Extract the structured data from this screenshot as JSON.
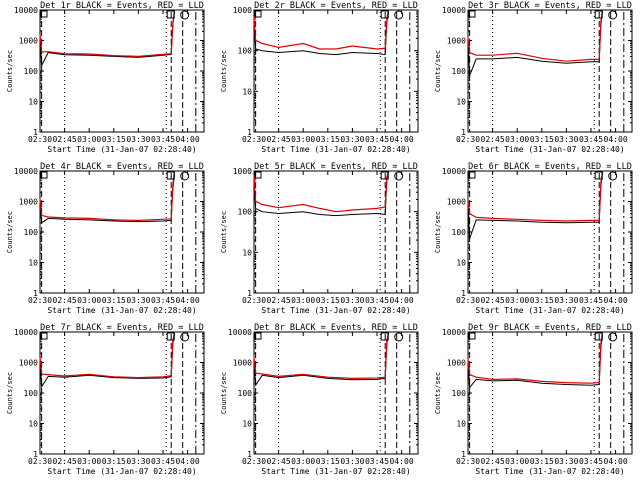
{
  "chart_data": [
    {
      "type": "line",
      "title": "Det 1r BLACK = Events, RED = LLD",
      "xlabel": "Start Time (31-Jan-07 02:28:40)",
      "ylabel": "Counts/sec",
      "yscale": "log",
      "ylim": [
        1,
        10000
      ],
      "xlim": [
        "02:30",
        "04:10"
      ],
      "x_ticks": [
        "02:30",
        "02:45",
        "03:00",
        "03:15",
        "03:30",
        "03:45",
        "04:00"
      ],
      "y_ticks": [
        "1",
        "10",
        "100",
        "1000",
        "10000"
      ],
      "series": [
        {
          "color": "#000000",
          "x": [
            "02:30",
            "02:31",
            "02:35",
            "02:45",
            "03:00",
            "03:15",
            "03:30",
            "03:45",
            "03:50",
            "03:51",
            "03:52"
          ],
          "y": [
            1500,
            150,
            400,
            340,
            330,
            300,
            280,
            330,
            350,
            3000,
            9000
          ]
        },
        {
          "color": "#e00000",
          "x": [
            "02:30",
            "02:31",
            "02:35",
            "02:45",
            "03:00",
            "03:15",
            "03:30",
            "03:45",
            "03:50",
            "03:51",
            "03:52"
          ],
          "y": [
            1600,
            420,
            430,
            370,
            360,
            320,
            300,
            350,
            370,
            3500,
            10000
          ]
        }
      ]
    },
    {
      "type": "line",
      "title": "Det 2r BLACK = Events, RED = LLD",
      "xlabel": "Start Time (31-Jan-07 02:28:40)",
      "ylabel": "Counts/sec",
      "yscale": "log",
      "ylim": [
        1,
        1000
      ],
      "xlim": [
        "02:30",
        "04:10"
      ],
      "x_ticks": [
        "02:30",
        "02:45",
        "03:00",
        "03:15",
        "03:30",
        "03:45",
        "04:00"
      ],
      "y_ticks": [
        "1",
        "10",
        "100",
        "1000"
      ],
      "series": [
        {
          "color": "#000000",
          "x": [
            "02:30",
            "02:31",
            "02:35",
            "02:45",
            "03:00",
            "03:10",
            "03:20",
            "03:30",
            "03:45",
            "03:50",
            "03:51",
            "03:52"
          ],
          "y": [
            600,
            110,
            100,
            90,
            100,
            85,
            80,
            90,
            85,
            80,
            500,
            900
          ]
        },
        {
          "color": "#e00000",
          "x": [
            "02:30",
            "02:31",
            "02:35",
            "02:45",
            "03:00",
            "03:10",
            "03:20",
            "03:30",
            "03:45",
            "03:50",
            "03:51",
            "03:52"
          ],
          "y": [
            700,
            180,
            150,
            120,
            150,
            110,
            110,
            130,
            110,
            115,
            600,
            1000
          ]
        }
      ]
    },
    {
      "type": "line",
      "title": "Det 3r BLACK = Events, RED = LLD",
      "xlabel": "Start Time (31-Jan-07 02:28:40)",
      "ylabel": "Counts/sec",
      "yscale": "log",
      "ylim": [
        1,
        10000
      ],
      "xlim": [
        "02:30",
        "04:10"
      ],
      "x_ticks": [
        "02:30",
        "02:45",
        "03:00",
        "03:15",
        "03:30",
        "03:45",
        "04:00"
      ],
      "y_ticks": [
        "1",
        "10",
        "100",
        "1000",
        "10000"
      ],
      "series": [
        {
          "color": "#000000",
          "x": [
            "02:30",
            "02:31",
            "02:35",
            "02:45",
            "03:00",
            "03:15",
            "03:30",
            "03:45",
            "03:50",
            "03:51",
            "03:52"
          ],
          "y": [
            1200,
            70,
            250,
            250,
            280,
            210,
            180,
            200,
            200,
            3000,
            9000
          ]
        },
        {
          "color": "#e00000",
          "x": [
            "02:30",
            "02:31",
            "02:35",
            "02:45",
            "03:00",
            "03:15",
            "03:30",
            "03:45",
            "03:50",
            "03:51",
            "03:52"
          ],
          "y": [
            1300,
            400,
            330,
            330,
            380,
            260,
            210,
            240,
            240,
            4000,
            10000
          ]
        }
      ]
    },
    {
      "type": "line",
      "title": "Det 4r BLACK = Events, RED = LLD",
      "xlabel": "Start Time (31-Jan-07 02:28:40)",
      "ylabel": "Counts/sec",
      "yscale": "log",
      "ylim": [
        1,
        10000
      ],
      "xlim": [
        "02:30",
        "04:10"
      ],
      "x_ticks": [
        "02:30",
        "02:45",
        "03:00",
        "03:15",
        "03:30",
        "03:45",
        "04:00"
      ],
      "y_ticks": [
        "1",
        "10",
        "100",
        "1000",
        "10000"
      ],
      "series": [
        {
          "color": "#000000",
          "x": [
            "02:30",
            "02:31",
            "02:35",
            "02:45",
            "03:00",
            "03:15",
            "03:30",
            "03:45",
            "03:50",
            "03:51",
            "03:52"
          ],
          "y": [
            1100,
            200,
            280,
            260,
            250,
            230,
            220,
            230,
            240,
            2500,
            8000
          ]
        },
        {
          "color": "#e00000",
          "x": [
            "02:30",
            "02:31",
            "02:35",
            "02:45",
            "03:00",
            "03:15",
            "03:30",
            "03:45",
            "03:50",
            "03:51",
            "03:52"
          ],
          "y": [
            1200,
            350,
            310,
            290,
            280,
            250,
            240,
            260,
            270,
            3500,
            10000
          ]
        }
      ]
    },
    {
      "type": "line",
      "title": "Det 5r BLACK = Events, RED = LLD",
      "xlabel": "Start Time (31-Jan-07 02:28:40)",
      "ylabel": "Counts/sec",
      "yscale": "log",
      "ylim": [
        1,
        1000
      ],
      "xlim": [
        "02:30",
        "04:10"
      ],
      "x_ticks": [
        "02:30",
        "02:45",
        "03:00",
        "03:15",
        "03:30",
        "03:45",
        "04:00"
      ],
      "y_ticks": [
        "1",
        "10",
        "100",
        "1000"
      ],
      "series": [
        {
          "color": "#000000",
          "x": [
            "02:30",
            "02:31",
            "02:35",
            "02:45",
            "03:00",
            "03:10",
            "03:20",
            "03:30",
            "03:45",
            "03:50",
            "03:51",
            "03:52"
          ],
          "y": [
            700,
            120,
            100,
            90,
            100,
            85,
            80,
            85,
            90,
            85,
            600,
            950
          ]
        },
        {
          "color": "#e00000",
          "x": [
            "02:30",
            "02:31",
            "02:35",
            "02:45",
            "03:00",
            "03:10",
            "03:20",
            "03:30",
            "03:45",
            "03:50",
            "03:51",
            "03:52"
          ],
          "y": [
            800,
            180,
            150,
            125,
            150,
            120,
            100,
            110,
            120,
            130,
            700,
            1000
          ]
        }
      ]
    },
    {
      "type": "line",
      "title": "Det 6r BLACK = Events, RED = LLD",
      "xlabel": "Start Time (31-Jan-07 02:28:40)",
      "ylabel": "Counts/sec",
      "yscale": "log",
      "ylim": [
        1,
        10000
      ],
      "xlim": [
        "02:30",
        "04:10"
      ],
      "x_ticks": [
        "02:30",
        "02:45",
        "03:00",
        "03:15",
        "03:30",
        "03:45",
        "04:00"
      ],
      "y_ticks": [
        "1",
        "10",
        "100",
        "1000",
        "10000"
      ],
      "series": [
        {
          "color": "#000000",
          "x": [
            "02:30",
            "02:31",
            "02:35",
            "02:45",
            "03:00",
            "03:15",
            "03:30",
            "03:45",
            "03:50",
            "03:51",
            "03:52"
          ],
          "y": [
            900,
            60,
            250,
            240,
            230,
            210,
            200,
            210,
            210,
            3000,
            9000
          ]
        },
        {
          "color": "#e00000",
          "x": [
            "02:30",
            "02:31",
            "02:35",
            "02:45",
            "03:00",
            "03:15",
            "03:30",
            "03:45",
            "03:50",
            "03:51",
            "03:52"
          ],
          "y": [
            1000,
            400,
            300,
            280,
            260,
            240,
            230,
            240,
            240,
            4000,
            10000
          ]
        }
      ]
    },
    {
      "type": "line",
      "title": "Det 7r BLACK = Events, RED = LLD",
      "xlabel": "Start Time (31-Jan-07 02:28:40)",
      "ylabel": "Counts/sec",
      "yscale": "log",
      "ylim": [
        1,
        10000
      ],
      "xlim": [
        "02:30",
        "04:10"
      ],
      "x_ticks": [
        "02:30",
        "02:45",
        "03:00",
        "03:15",
        "03:30",
        "03:45",
        "04:00"
      ],
      "y_ticks": [
        "1",
        "10",
        "100",
        "1000",
        "10000"
      ],
      "series": [
        {
          "color": "#000000",
          "x": [
            "02:30",
            "02:31",
            "02:35",
            "02:45",
            "03:00",
            "03:15",
            "03:30",
            "03:45",
            "03:50",
            "03:51",
            "03:52"
          ],
          "y": [
            1500,
            160,
            350,
            330,
            380,
            320,
            300,
            310,
            340,
            4000,
            9000
          ]
        },
        {
          "color": "#e00000",
          "x": [
            "02:30",
            "02:31",
            "02:35",
            "02:45",
            "03:00",
            "03:15",
            "03:30",
            "03:45",
            "03:50",
            "03:51",
            "03:52"
          ],
          "y": [
            1600,
            420,
            400,
            360,
            410,
            340,
            320,
            340,
            370,
            5000,
            10000
          ]
        }
      ]
    },
    {
      "type": "line",
      "title": "Det 8r BLACK = Events, RED = LLD",
      "xlabel": "Start Time (31-Jan-07 02:28:40)",
      "ylabel": "Counts/sec",
      "yscale": "log",
      "ylim": [
        1,
        10000
      ],
      "xlim": [
        "02:30",
        "04:10"
      ],
      "x_ticks": [
        "02:30",
        "02:45",
        "03:00",
        "03:15",
        "03:30",
        "03:45",
        "04:00"
      ],
      "y_ticks": [
        "1",
        "10",
        "100",
        "1000",
        "10000"
      ],
      "series": [
        {
          "color": "#000000",
          "x": [
            "02:30",
            "02:31",
            "02:35",
            "02:45",
            "03:00",
            "03:15",
            "03:30",
            "03:45",
            "03:50",
            "03:51",
            "03:52"
          ],
          "y": [
            1400,
            180,
            380,
            320,
            380,
            300,
            270,
            280,
            300,
            4000,
            9000
          ]
        },
        {
          "color": "#e00000",
          "x": [
            "02:30",
            "02:31",
            "02:35",
            "02:45",
            "03:00",
            "03:15",
            "03:30",
            "03:45",
            "03:50",
            "03:51",
            "03:52"
          ],
          "y": [
            1500,
            450,
            420,
            350,
            410,
            330,
            300,
            310,
            330,
            5000,
            10000
          ]
        }
      ]
    },
    {
      "type": "line",
      "title": "Det 9r BLACK = Events, RED = LLD",
      "xlabel": "Start Time (31-Jan-07 02:28:40)",
      "ylabel": "Counts/sec",
      "yscale": "log",
      "ylim": [
        1,
        10000
      ],
      "xlim": [
        "02:30",
        "04:10"
      ],
      "x_ticks": [
        "02:30",
        "02:45",
        "03:00",
        "03:15",
        "03:30",
        "03:45",
        "04:00"
      ],
      "y_ticks": [
        "1",
        "10",
        "100",
        "1000",
        "10000"
      ],
      "series": [
        {
          "color": "#000000",
          "x": [
            "02:30",
            "02:31",
            "02:35",
            "02:45",
            "03:00",
            "03:15",
            "03:30",
            "03:45",
            "03:50",
            "03:51",
            "03:52"
          ],
          "y": [
            1200,
            150,
            280,
            250,
            260,
            210,
            190,
            180,
            190,
            3000,
            8000
          ]
        },
        {
          "color": "#e00000",
          "x": [
            "02:30",
            "02:31",
            "02:35",
            "02:45",
            "03:00",
            "03:15",
            "03:30",
            "03:45",
            "03:50",
            "03:51",
            "03:52"
          ],
          "y": [
            1300,
            400,
            330,
            280,
            290,
            240,
            220,
            210,
            220,
            4000,
            10000
          ]
        }
      ]
    }
  ]
}
